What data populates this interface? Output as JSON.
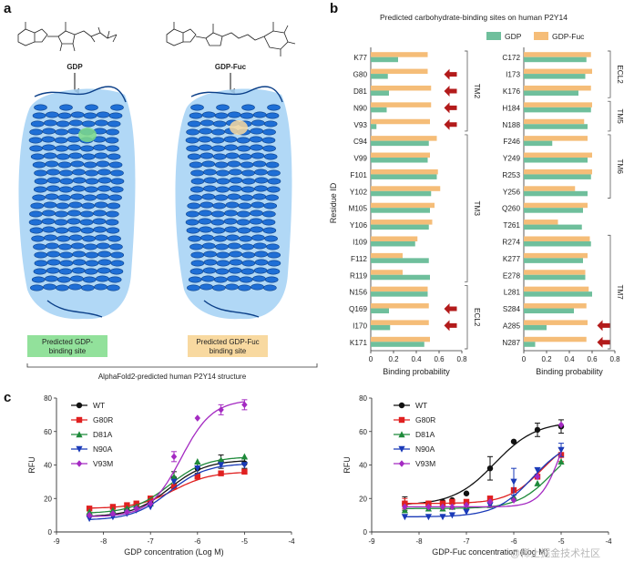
{
  "panel_labels": {
    "a": "a",
    "b": "b",
    "c": "c"
  },
  "panel_a": {
    "ligand_left": "GDP",
    "ligand_right": "GDP-Fuc",
    "legend_left": [
      "Predicted GDP-",
      "binding site"
    ],
    "legend_right": [
      "Predicted GDP-Fuc",
      "binding site"
    ],
    "caption": "AlphaFold2-predicted human P2Y14 structure",
    "colors": {
      "protein": "#1f6fd6",
      "surface": "#a8d4f5",
      "gdp_site": "#7fdc8a",
      "fuc_site": "#f8d9a0"
    }
  },
  "chart_data": [
    {
      "type": "bar",
      "orientation": "horizontal",
      "title": "Predicted carbohydrate-binding sites on human P2Y14",
      "ylabel": "Residue ID",
      "xlabel": "Binding probability",
      "xlim": [
        0,
        0.8
      ],
      "xticks": [
        "0",
        "0.2",
        "0.4",
        "0.6",
        "0.8"
      ],
      "legend": {
        "position": "top",
        "entries": [
          "GDP",
          "GDP-Fuc"
        ]
      },
      "colors": {
        "GDP": "#6fbf9c",
        "GDP-Fuc": "#f5bd78",
        "arrow": "#b31b1b"
      },
      "categories": [
        "K77",
        "G80",
        "D81",
        "N90",
        "V93",
        "C94",
        "V99",
        "F101",
        "Y102",
        "M105",
        "Y106",
        "I109",
        "F112",
        "R119",
        "N156",
        "Q169",
        "I170",
        "K171"
      ],
      "series": [
        {
          "name": "GDP",
          "values": [
            0.24,
            0.15,
            0.16,
            0.14,
            0.05,
            0.51,
            0.5,
            0.58,
            0.53,
            0.52,
            0.51,
            0.39,
            0.51,
            0.52,
            0.5,
            0.16,
            0.17,
            0.47
          ]
        },
        {
          "name": "GDP-Fuc",
          "values": [
            0.5,
            0.5,
            0.53,
            0.53,
            0.52,
            0.58,
            0.52,
            0.59,
            0.61,
            0.56,
            0.54,
            0.41,
            0.28,
            0.28,
            0.5,
            0.51,
            0.51,
            0.52
          ]
        }
      ],
      "arrows": [
        "G80",
        "D81",
        "N90",
        "V93",
        "Q169",
        "I170"
      ],
      "regions": [
        {
          "label": "TM2",
          "from": "K77",
          "to": "V93"
        },
        {
          "label": "TM3",
          "from": "C94",
          "to": "R119"
        },
        {
          "label": "ECL2",
          "from": "N156",
          "to": "K171"
        }
      ]
    },
    {
      "type": "bar",
      "orientation": "horizontal",
      "xlabel": "Binding probability",
      "xlim": [
        0,
        0.8
      ],
      "xticks": [
        "0",
        "0.2",
        "0.4",
        "0.6",
        "0.8"
      ],
      "categories": [
        "C172",
        "I173",
        "K176",
        "H184",
        "N188",
        "F246",
        "Y249",
        "R253",
        "Y256",
        "Q260",
        "T261",
        "R274",
        "K277",
        "E278",
        "L281",
        "S284",
        "A285",
        "N287"
      ],
      "series": [
        {
          "name": "GDP",
          "values": [
            0.55,
            0.54,
            0.48,
            0.59,
            0.56,
            0.25,
            0.56,
            0.59,
            0.56,
            0.52,
            0.51,
            0.59,
            0.52,
            0.54,
            0.6,
            0.44,
            0.2,
            0.1
          ]
        },
        {
          "name": "GDP-Fuc",
          "values": [
            0.59,
            0.6,
            0.59,
            0.6,
            0.53,
            0.56,
            0.6,
            0.6,
            0.45,
            0.56,
            0.3,
            0.58,
            0.56,
            0.54,
            0.57,
            0.55,
            0.56,
            0.55
          ]
        }
      ],
      "arrows": [
        "A285",
        "N287"
      ],
      "regions": [
        {
          "label": "ECL2",
          "from": "C172",
          "to": "K176"
        },
        {
          "label": "TM5",
          "from": "H184",
          "to": "N188"
        },
        {
          "label": "TM6",
          "from": "F246",
          "to": "Y256"
        },
        {
          "label": "TM7",
          "from": "R274",
          "to": "N287"
        }
      ]
    },
    {
      "type": "line",
      "xlabel": "GDP concentration (Log M)",
      "ylabel": "RFU",
      "xlim": [
        -9,
        -4
      ],
      "ylim": [
        0,
        80
      ],
      "xticks": [
        "-9",
        "-8",
        "-7",
        "-6",
        "-5",
        "-4"
      ],
      "yticks": [
        "0",
        "20",
        "40",
        "60",
        "80"
      ],
      "legend": {
        "position": "top-left"
      },
      "x": [
        -8.3,
        -7.8,
        -7.5,
        -7.3,
        -7.0,
        -6.5,
        -6.0,
        -5.5,
        -5.0
      ],
      "series": [
        {
          "name": "WT",
          "color": "#111111",
          "marker": "circle",
          "values": [
            10,
            11,
            13,
            16,
            18,
            32,
            38,
            42,
            41
          ],
          "errors": [
            0,
            0,
            0,
            0,
            0,
            4,
            3,
            4,
            3
          ],
          "fit": {
            "bottom": 9,
            "top": 43,
            "logec50": -6.6,
            "hill": 1.1
          }
        },
        {
          "name": "G80R",
          "color": "#e02020",
          "marker": "square",
          "values": [
            14,
            15,
            16,
            17,
            20,
            27,
            33,
            35,
            36
          ],
          "errors": [
            0,
            0,
            0,
            0,
            0,
            0,
            0,
            0,
            0
          ],
          "fit": {
            "bottom": 14,
            "top": 36,
            "logec50": -6.5,
            "hill": 1.1
          }
        },
        {
          "name": "D81A",
          "color": "#1e8a3a",
          "marker": "triangle-up",
          "values": [
            12,
            13,
            14,
            15,
            17,
            33,
            42,
            43,
            45
          ],
          "errors": [
            0,
            0,
            0,
            0,
            0,
            0,
            0,
            0,
            0
          ],
          "fit": {
            "bottom": 11,
            "top": 45,
            "logec50": -6.6,
            "hill": 1.1
          }
        },
        {
          "name": "N90A",
          "color": "#1a3ab8",
          "marker": "triangle-down",
          "values": [
            8,
            9,
            11,
            13,
            15,
            30,
            38,
            40,
            40
          ],
          "errors": [
            0,
            0,
            0,
            0,
            0,
            0,
            0,
            0,
            0
          ],
          "fit": {
            "bottom": 7,
            "top": 41,
            "logec50": -6.6,
            "hill": 1.1
          }
        },
        {
          "name": "V93M",
          "color": "#a42ac2",
          "marker": "diamond",
          "values": [
            10,
            11,
            12,
            14,
            17,
            45,
            68,
            73,
            76
          ],
          "errors": [
            0,
            0,
            0,
            0,
            0,
            3,
            0,
            3,
            3
          ],
          "fit": {
            "bottom": 9,
            "top": 79,
            "logec50": -6.35,
            "hill": 1.3
          }
        }
      ]
    },
    {
      "type": "line",
      "xlabel": "GDP-Fuc concentration (Log M)",
      "ylabel": "RFU",
      "xlim": [
        -9,
        -4
      ],
      "ylim": [
        0,
        80
      ],
      "xticks": [
        "-9",
        "-8",
        "-7",
        "-6",
        "-5",
        "-4"
      ],
      "yticks": [
        "0",
        "20",
        "40",
        "60",
        "80"
      ],
      "legend": {
        "position": "top-left"
      },
      "x": [
        -8.3,
        -7.8,
        -7.5,
        -7.3,
        -7.0,
        -6.5,
        -6.0,
        -5.5,
        -5.0
      ],
      "series": [
        {
          "name": "WT",
          "color": "#111111",
          "marker": "circle",
          "values": [
            17,
            17,
            18,
            19,
            23,
            38,
            54,
            61,
            63
          ],
          "errors": [
            4,
            0,
            0,
            0,
            0,
            7,
            0,
            4,
            4
          ],
          "fit": {
            "bottom": 16,
            "top": 66,
            "logec50": -6.4,
            "hill": 1.0
          }
        },
        {
          "name": "G80R",
          "color": "#e02020",
          "marker": "square",
          "values": [
            17,
            17,
            17,
            18,
            18,
            20,
            25,
            33,
            46
          ],
          "errors": [
            3,
            0,
            0,
            0,
            0,
            0,
            0,
            0,
            4
          ],
          "fit": {
            "bottom": 17,
            "top": 58,
            "logec50": -5.4,
            "hill": 1.2
          }
        },
        {
          "name": "D81A",
          "color": "#1e8a3a",
          "marker": "triangle-up",
          "values": [
            13,
            14,
            14,
            15,
            15,
            16,
            21,
            29,
            42
          ],
          "errors": [
            0,
            0,
            0,
            0,
            0,
            0,
            0,
            0,
            0
          ],
          "fit": {
            "bottom": 14,
            "top": 55,
            "logec50": -5.2,
            "hill": 1.2
          }
        },
        {
          "name": "N90A",
          "color": "#1a3ab8",
          "marker": "triangle-down",
          "values": [
            9,
            9,
            9,
            10,
            12,
            16,
            30,
            37,
            49
          ],
          "errors": [
            0,
            0,
            0,
            0,
            0,
            0,
            8,
            0,
            4
          ],
          "fit": {
            "bottom": 9,
            "top": 56,
            "logec50": -5.6,
            "hill": 1.1
          }
        },
        {
          "name": "V93M",
          "color": "#a42ac2",
          "marker": "diamond",
          "values": [
            15,
            15,
            15,
            15,
            16,
            18,
            19,
            33,
            64
          ],
          "errors": [
            0,
            0,
            0,
            0,
            0,
            0,
            0,
            0,
            0
          ],
          "fit": {
            "bottom": 15,
            "top": 80,
            "logec50": -5.0,
            "hill": 2.0
          }
        }
      ]
    }
  ],
  "watermark": "@稀土掘金技术社区"
}
